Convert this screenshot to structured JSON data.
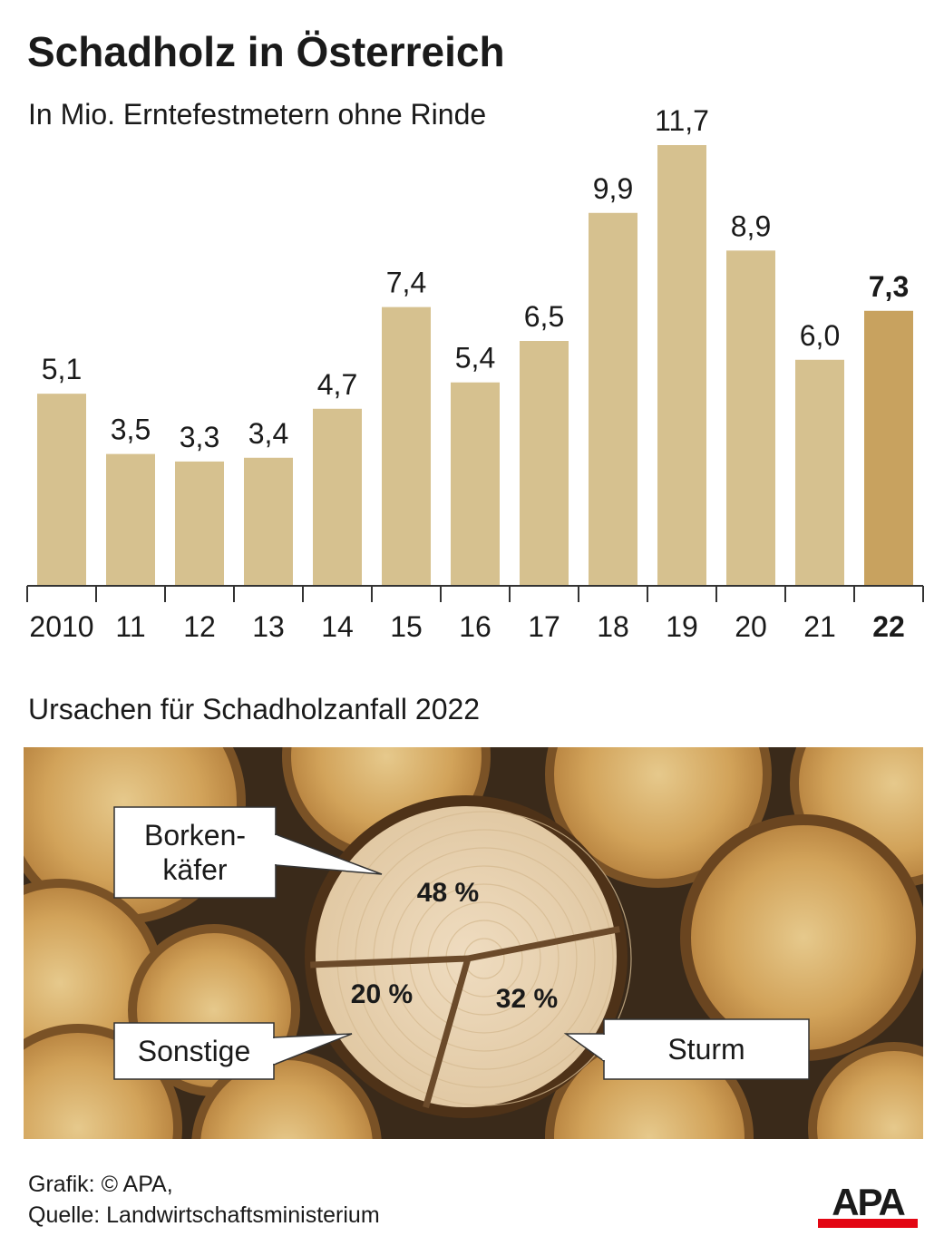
{
  "header": {
    "title": "Schadholz in Österreich",
    "subtitle": "In Mio. Erntefestmetern ohne Rinde"
  },
  "chart_data": [
    {
      "type": "bar",
      "categories": [
        "2010",
        "11",
        "12",
        "13",
        "14",
        "15",
        "16",
        "17",
        "18",
        "19",
        "20",
        "21",
        "22"
      ],
      "values": [
        5.1,
        3.5,
        3.3,
        3.4,
        4.7,
        7.4,
        5.4,
        6.5,
        9.9,
        11.7,
        8.9,
        6.0,
        7.3
      ],
      "value_labels": [
        "5,1",
        "3,5",
        "3,3",
        "3,4",
        "4,7",
        "7,4",
        "5,4",
        "6,5",
        "9,9",
        "11,7",
        "8,9",
        "6,0",
        "7,3"
      ],
      "highlight_index": 12,
      "title": "Schadholz in Österreich",
      "subtitle": "In Mio. Erntefestmetern ohne Rinde",
      "xlabel": "",
      "ylabel": "",
      "ylim": [
        0,
        12
      ],
      "grid": false,
      "colors": {
        "bar": "#d6c18f",
        "highlight": "#c8a25f"
      }
    },
    {
      "type": "pie",
      "title": "Ursachen für Schadholzanfall 2022",
      "slices": [
        {
          "label": "Borken-käfer",
          "label_lines": [
            "Borken-",
            "käfer"
          ],
          "value": 48,
          "value_label": "48 %"
        },
        {
          "label": "Sturm",
          "label_lines": [
            "Sturm"
          ],
          "value": 32,
          "value_label": "32 %"
        },
        {
          "label": "Sonstige",
          "label_lines": [
            "Sonstige"
          ],
          "value": 20,
          "value_label": "20 %"
        }
      ]
    }
  ],
  "pie_section": {
    "title": "Ursachen für Schadholzanfall 2022"
  },
  "footer": {
    "line1": "Grafik: © APA,",
    "line2": "Quelle: Landwirtschaftsministerium"
  },
  "logo": {
    "text": "APA",
    "text_color": "#1a1a1a",
    "bar_color": "#e30613"
  }
}
